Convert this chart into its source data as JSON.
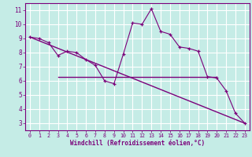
{
  "xlabel": "Windchill (Refroidissement éolien,°C)",
  "bg_color": "#c5ece6",
  "grid_color": "#ffffff",
  "line_color": "#7b007b",
  "line1_x": [
    0,
    1,
    2,
    3,
    4,
    5,
    6,
    7,
    8,
    9,
    10,
    11,
    12,
    13,
    14,
    15,
    16,
    17,
    18,
    19,
    20,
    21,
    22,
    23
  ],
  "line1_y": [
    9.1,
    9.0,
    8.7,
    7.8,
    8.1,
    8.0,
    7.5,
    7.1,
    6.0,
    5.8,
    7.9,
    10.1,
    10.0,
    11.1,
    9.5,
    9.3,
    8.4,
    8.3,
    8.1,
    6.3,
    6.2,
    5.3,
    3.7,
    3.0
  ],
  "line2_x": [
    0,
    23
  ],
  "line2_y": [
    9.1,
    3.0
  ],
  "line3_x": [
    3,
    20
  ],
  "line3_y": [
    6.3,
    6.3
  ],
  "xlim": [
    -0.5,
    23.5
  ],
  "ylim": [
    2.5,
    11.5
  ],
  "yticks": [
    3,
    4,
    5,
    6,
    7,
    8,
    9,
    10,
    11
  ],
  "xticks": [
    0,
    1,
    2,
    3,
    4,
    5,
    6,
    7,
    8,
    9,
    10,
    11,
    12,
    13,
    14,
    15,
    16,
    17,
    18,
    19,
    20,
    21,
    22,
    23
  ]
}
